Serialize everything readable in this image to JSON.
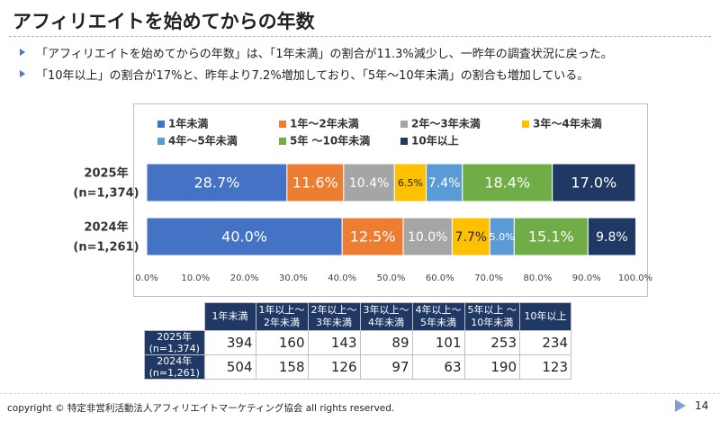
{
  "header": {
    "title": "アフィリエイトを始めてからの年数"
  },
  "bullets": [
    "「アフィリエイトを始めてからの年数」は、「1年未満」の割合が11.3%減少し、一昨年の調査状況に戻った。",
    "「10年以上」の割合が17%と、昨年より7.2%増加しており、「5年～10年未満」の割合も増加している。"
  ],
  "chart_data": {
    "type": "stacked-barh",
    "categories": [
      [
        "2025年",
        "(n=1,374)"
      ],
      [
        "2024年",
        "(n=1,261)"
      ]
    ],
    "series": [
      {
        "name": "1年未満",
        "color": "#4472c4",
        "values": [
          28.7,
          40.0
        ],
        "value_labels": [
          "28.7%",
          "40.0%"
        ]
      },
      {
        "name": "1年～2年未満",
        "color": "#ed7d31",
        "values": [
          11.6,
          12.5
        ],
        "value_labels": [
          "11.6%",
          "12.5%"
        ]
      },
      {
        "name": "2年～3年未満",
        "color": "#a5a5a5",
        "values": [
          10.4,
          10.0
        ],
        "value_labels": [
          "10.4%",
          "10.0%"
        ]
      },
      {
        "name": "3年～4年未満",
        "color": "#ffc000",
        "values": [
          6.5,
          7.7
        ],
        "value_labels": [
          "6.5%",
          "7.7%"
        ]
      },
      {
        "name": "4年～5年未満",
        "color": "#5b9bd5",
        "values": [
          7.4,
          5.0
        ],
        "value_labels": [
          "7.4%",
          "5.0%"
        ]
      },
      {
        "name": "5年 ～10年未満",
        "color": "#70ad47",
        "values": [
          18.4,
          15.1
        ],
        "value_labels": [
          "18.4%",
          "15.1%"
        ]
      },
      {
        "name": "10年以上",
        "color": "#203864",
        "values": [
          17.0,
          9.8
        ],
        "value_labels": [
          "17.0%",
          "9.8%"
        ]
      }
    ],
    "xlim": [
      0,
      100
    ],
    "xticks": [
      {
        "value": 0,
        "label": "0.0%"
      },
      {
        "value": 10,
        "label": "10.0%"
      },
      {
        "value": 20,
        "label": "20.0%"
      },
      {
        "value": 30,
        "label": "30.0%"
      },
      {
        "value": 40,
        "label": "40.0%"
      },
      {
        "value": 50,
        "label": "50.0%"
      },
      {
        "value": 60,
        "label": "60.0%"
      },
      {
        "value": 70,
        "label": "70.0%"
      },
      {
        "value": 80,
        "label": "80.0%"
      },
      {
        "value": 90,
        "label": "90.0%"
      },
      {
        "value": 100,
        "label": "100.0%"
      }
    ],
    "grid": false
  },
  "table": {
    "header": [
      [
        "1年未満"
      ],
      [
        "1年以上～",
        "2年未満"
      ],
      [
        "2年以上～",
        "3年未満"
      ],
      [
        "3年以上～",
        "4年未満"
      ],
      [
        "4年以上～",
        "5年未満"
      ],
      [
        "5年以上 ～",
        "10年未満"
      ],
      [
        "10年以上"
      ]
    ],
    "rows": [
      {
        "label": [
          "2025年",
          "(n=1,374)"
        ],
        "values": [
          394,
          160,
          143,
          89,
          101,
          253,
          234
        ]
      },
      {
        "label": [
          "2024年",
          "(n=1,261)"
        ],
        "values": [
          504,
          158,
          126,
          97,
          63,
          190,
          123
        ]
      }
    ]
  },
  "footer": {
    "copyright": "copyright © 特定非営利活動法人アフィリエイトマーケティング協会 all rights reserved.",
    "page": "14"
  }
}
